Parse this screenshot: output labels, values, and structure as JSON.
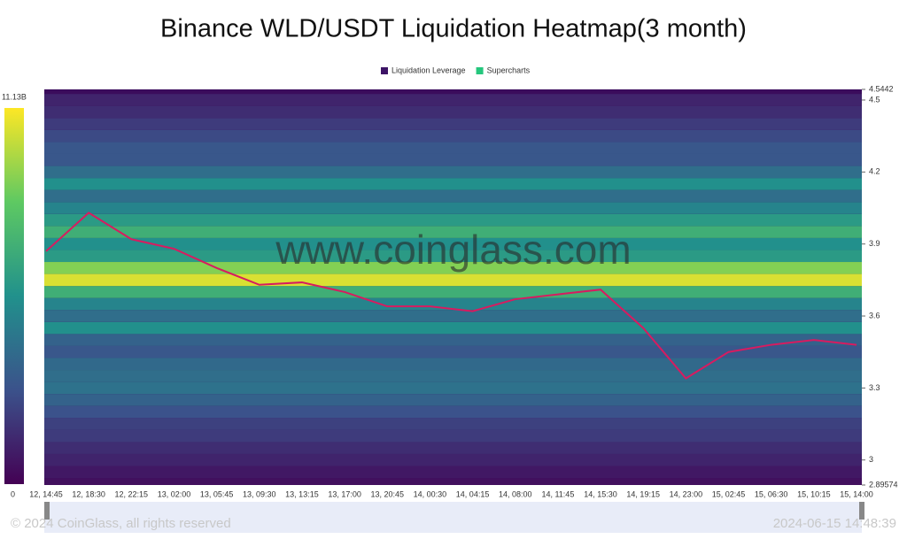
{
  "chart_data": {
    "type": "heatmap",
    "title": "Binance WLD/USDT Liquidation Heatmap(3 month)",
    "watermark": "www.coinglass.com",
    "copyright": "© 2024 CoinGlass, all rights reserved",
    "timestamp": "2024-06-15 14:48:39",
    "legend": [
      {
        "name": "Liquidation Leverage",
        "color": "#3d1466"
      },
      {
        "name": "Supercharts",
        "color": "#25c77d"
      }
    ],
    "colorbar": [
      {
        "value": 0,
        "label": "0"
      },
      {
        "value": 11130000000,
        "label": "11.13B"
      }
    ],
    "ylim": [
      2.89574,
      4.5442
    ],
    "yticks": [
      2.89574,
      3,
      3.3,
      3.6,
      3.9,
      4.2,
      4.5,
      4.5442
    ],
    "categories": [
      "12, 14:45",
      "12, 18:30",
      "12, 22:15",
      "13, 02:00",
      "13, 05:45",
      "13, 09:30",
      "13, 13:15",
      "13, 17:00",
      "13, 20:45",
      "14, 00:30",
      "14, 04:15",
      "14, 08:00",
      "14, 11:45",
      "14, 15:30",
      "14, 19:15",
      "14, 23:00",
      "15, 02:45",
      "15, 06:30",
      "15, 10:15",
      "15, 14:00"
    ],
    "price": {
      "name": "WLD/USDT",
      "color": "#d81b60",
      "values": [
        3.87,
        4.03,
        3.92,
        3.88,
        3.8,
        3.73,
        3.74,
        3.7,
        3.64,
        3.64,
        3.62,
        3.67,
        3.69,
        3.71,
        3.55,
        3.34,
        3.45,
        3.48,
        3.5,
        3.48
      ]
    },
    "levels": [
      2.9,
      2.95,
      3.0,
      3.05,
      3.1,
      3.15,
      3.2,
      3.25,
      3.3,
      3.35,
      3.4,
      3.45,
      3.5,
      3.55,
      3.6,
      3.65,
      3.7,
      3.75,
      3.8,
      3.85,
      3.9,
      3.95,
      4.0,
      4.05,
      4.1,
      4.15,
      4.2,
      4.25,
      4.3,
      4.35,
      4.4,
      4.45,
      4.5
    ],
    "intensity": [
      500000000,
      800000000,
      1200000000,
      1500000000,
      2000000000,
      2200000000,
      2800000000,
      3500000000,
      4200000000,
      4000000000,
      3800000000,
      3000000000,
      3500000000,
      5500000000,
      4000000000,
      5000000000,
      7000000000,
      10500000000,
      9000000000,
      6000000000,
      5500000000,
      7000000000,
      6000000000,
      5000000000,
      4000000000,
      5500000000,
      4000000000,
      3000000000,
      3000000000,
      2500000000,
      2000000000,
      1500000000,
      1200000000
    ]
  }
}
